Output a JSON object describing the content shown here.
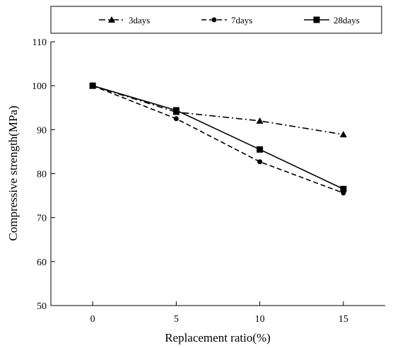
{
  "chart_data": {
    "type": "line",
    "title": "",
    "xlabel": "Replacement ratio(%)",
    "ylabel": "Compressive strength(MPa)",
    "x": [
      0,
      5,
      10,
      15
    ],
    "x_ticks": [
      "0",
      "5",
      "10",
      "15"
    ],
    "y_ticks": [
      "50",
      "60",
      "70",
      "80",
      "90",
      "100",
      "110"
    ],
    "xlim": [
      -2.5,
      17.5
    ],
    "ylim": [
      50,
      110
    ],
    "grid": false,
    "legend_position": "top",
    "series": [
      {
        "name": "3days",
        "values": [
          100,
          94.0,
          92.0,
          88.9
        ],
        "marker": "triangle",
        "dash": "dash-dot",
        "color": "#000000"
      },
      {
        "name": "7days",
        "values": [
          100,
          92.5,
          82.7,
          75.6
        ],
        "marker": "circle",
        "dash": "dashed",
        "color": "#000000"
      },
      {
        "name": "28days",
        "values": [
          100,
          94.4,
          85.5,
          76.5
        ],
        "marker": "square",
        "dash": "solid",
        "color": "#000000"
      }
    ]
  }
}
